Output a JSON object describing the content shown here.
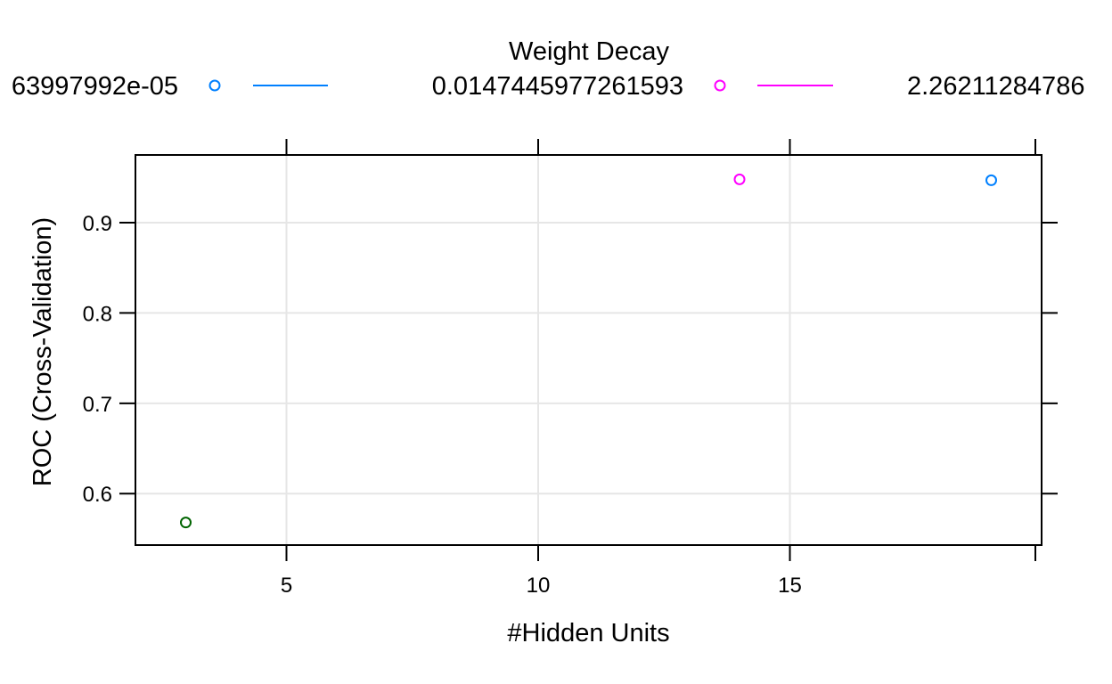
{
  "chart_data": {
    "type": "scatter",
    "title": "",
    "xlabel": "#Hidden Units",
    "ylabel": "ROC (Cross-Validation)",
    "xlim": [
      2,
      20
    ],
    "ylim": [
      0.543,
      0.975
    ],
    "x_ticks": [
      5,
      10,
      15
    ],
    "y_ticks": [
      0.6,
      0.7,
      0.8,
      0.9
    ],
    "grid": true,
    "legend": {
      "title": "Weight Decay",
      "placement": "top",
      "entries": [
        {
          "label": "63997992e-05",
          "color": "#0080ff"
        },
        {
          "label": "0.0147445977261593",
          "color": "#ff00ff"
        },
        {
          "label": "2.26211284786",
          "color": "#006400"
        }
      ]
    },
    "series": [
      {
        "name": "63997992e-05",
        "color": "#0080ff",
        "points": [
          {
            "x": 19,
            "y": 0.947
          }
        ]
      },
      {
        "name": "0.0147445977261593",
        "color": "#ff00ff",
        "points": [
          {
            "x": 14,
            "y": 0.948
          }
        ]
      },
      {
        "name": "2.26211284786",
        "color": "#006400",
        "points": [
          {
            "x": 3,
            "y": 0.568
          }
        ]
      }
    ]
  }
}
